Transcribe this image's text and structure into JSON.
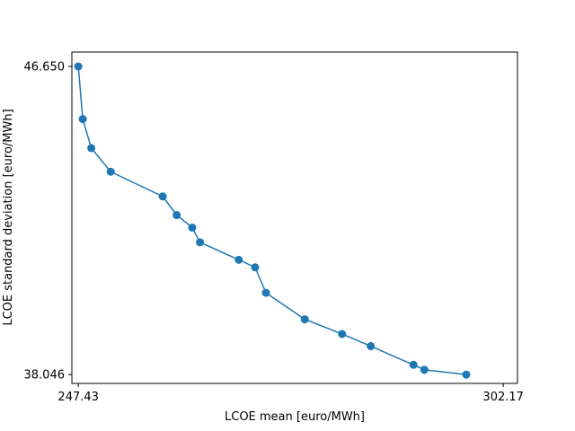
{
  "chart_data": {
    "type": "line",
    "title": "",
    "xlabel": "LCOE mean [euro/MWh]",
    "ylabel": "LCOE standard deviation [euro/MWh]",
    "xlim": [
      246.6,
      304.0
    ],
    "ylim": [
      37.8,
      47.05
    ],
    "xticks": [
      247.43,
      302.17
    ],
    "xtick_labels": [
      "247.43",
      "302.17"
    ],
    "yticks": [
      38.046,
      46.65
    ],
    "ytick_labels": [
      "38.046",
      "46.650"
    ],
    "grid": false,
    "legend": "none",
    "color": "#1f77b4",
    "series": [
      {
        "x": [
          247.43,
          248.0,
          249.1,
          251.6,
          258.3,
          260.1,
          262.1,
          263.1,
          268.1,
          270.2,
          271.6,
          276.6,
          281.4,
          285.1,
          290.6,
          292.0,
          297.4
        ],
        "y": [
          46.65,
          45.18,
          44.37,
          43.71,
          43.02,
          42.5,
          42.15,
          41.74,
          41.25,
          41.04,
          40.33,
          39.59,
          39.18,
          38.84,
          38.32,
          38.18,
          38.046
        ]
      }
    ]
  }
}
